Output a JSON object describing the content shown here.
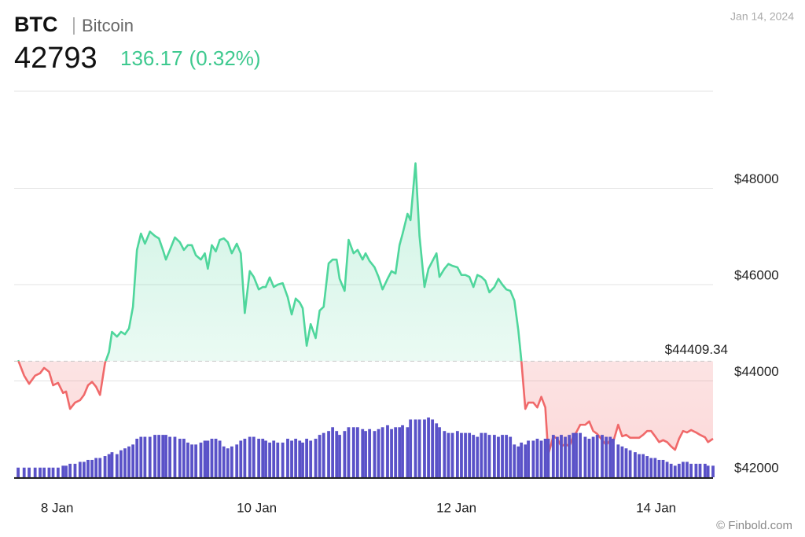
{
  "header": {
    "symbol": "BTC",
    "name": "Bitcoin",
    "price": 42793,
    "change": 136.17,
    "change_percent_label": "(0.32%)",
    "date": "Jan 14, 2024",
    "credit": "© Finbold.com"
  },
  "chart_data": {
    "type": "line",
    "x": [
      7.61,
      7.67,
      7.72,
      7.78,
      7.83,
      7.87,
      7.92,
      7.96,
      8.01,
      8.06,
      8.09,
      8.13,
      8.18,
      8.23,
      8.27,
      8.31,
      8.35,
      8.39,
      8.43,
      8.48,
      8.52,
      8.55,
      8.6,
      8.64,
      8.68,
      8.72,
      8.76,
      8.8,
      8.84,
      8.88,
      8.93,
      8.98,
      9.02,
      9.06,
      9.09,
      9.13,
      9.18,
      9.23,
      9.27,
      9.31,
      9.35,
      9.39,
      9.44,
      9.48,
      9.51,
      9.55,
      9.59,
      9.63,
      9.67,
      9.71,
      9.75,
      9.8,
      9.84,
      9.88,
      9.93,
      9.97,
      10.02,
      10.06,
      10.09,
      10.13,
      10.17,
      10.21,
      10.26,
      10.31,
      10.35,
      10.39,
      10.43,
      10.46,
      10.5,
      10.54,
      10.59,
      10.63,
      10.67,
      10.72,
      10.76,
      10.8,
      10.83,
      10.88,
      10.92,
      10.97,
      11.01,
      11.06,
      11.09,
      11.13,
      11.18,
      11.22,
      11.26,
      11.31,
      11.35,
      11.39,
      11.43,
      11.46,
      11.51,
      11.54,
      11.59,
      11.63,
      11.68,
      11.72,
      11.76,
      11.8,
      11.83,
      11.88,
      11.92,
      11.96,
      12.01,
      12.05,
      12.09,
      12.13,
      12.17,
      12.21,
      12.25,
      12.29,
      12.33,
      12.38,
      12.42,
      12.46,
      12.5,
      12.54,
      12.58,
      12.62,
      12.65,
      12.69,
      12.72,
      12.77,
      12.81,
      12.85,
      12.89,
      12.92,
      12.97,
      13.01,
      13.05,
      13.09,
      13.13,
      13.17,
      13.2,
      13.24,
      13.29,
      13.33,
      13.37,
      13.41,
      13.46,
      13.5,
      13.54,
      13.57,
      13.62,
      13.66,
      13.7,
      13.74,
      13.79,
      13.83,
      13.87,
      13.91,
      13.95,
      13.99,
      14.03,
      14.07,
      14.11,
      14.15,
      14.19,
      14.23,
      14.27,
      14.31,
      14.35,
      14.4,
      14.44,
      14.49,
      14.52,
      14.57
    ],
    "series": [
      {
        "name": "Price",
        "up_color": "#4fd69c",
        "down_color": "#f0696a",
        "values": [
          44430,
          44110,
          43940,
          44110,
          44160,
          44270,
          44190,
          43910,
          43960,
          43750,
          43780,
          43420,
          43550,
          43600,
          43710,
          43910,
          43980,
          43880,
          43710,
          44370,
          44600,
          45020,
          44920,
          45020,
          44970,
          45090,
          45540,
          46720,
          47060,
          46850,
          47100,
          47010,
          46960,
          46720,
          46520,
          46720,
          46980,
          46880,
          46720,
          46820,
          46820,
          46610,
          46520,
          46650,
          46330,
          46820,
          46690,
          46930,
          46960,
          46880,
          46650,
          46850,
          46650,
          45410,
          46280,
          46160,
          45900,
          45950,
          45950,
          46150,
          45950,
          46000,
          46030,
          45740,
          45380,
          45710,
          45630,
          45510,
          44730,
          45180,
          44890,
          45460,
          45540,
          46440,
          46520,
          46520,
          46120,
          45870,
          46930,
          46650,
          46720,
          46520,
          46650,
          46490,
          46360,
          46160,
          45900,
          46120,
          46280,
          46230,
          46820,
          47050,
          47470,
          47340,
          48520,
          47010,
          45950,
          46330,
          46490,
          46650,
          46160,
          46330,
          46430,
          46390,
          46360,
          46200,
          46200,
          46160,
          45950,
          46200,
          46160,
          46080,
          45840,
          45950,
          46120,
          46000,
          45900,
          45870,
          45670,
          45050,
          44430,
          43420,
          43550,
          43550,
          43450,
          43670,
          43450,
          42470,
          42850,
          42800,
          42640,
          42690,
          42640,
          42850,
          42930,
          43090,
          43090,
          43160,
          42960,
          42900,
          42770,
          42670,
          42770,
          42730,
          43090,
          42850,
          42880,
          42820,
          42820,
          42820,
          42880,
          42960,
          42960,
          42850,
          42730,
          42770,
          42730,
          42640,
          42570,
          42800,
          42960,
          42930,
          42980,
          42930,
          42880,
          42830,
          42730,
          42800
        ]
      },
      {
        "name": "Volume",
        "color": "#5a52c8",
        "axis": "y2",
        "values": [
          2.5,
          2.5,
          2.5,
          2.5,
          2.5,
          2.5,
          2.5,
          2.5,
          2.5,
          3,
          3,
          3.5,
          3.5,
          4,
          4,
          4.5,
          4.5,
          5,
          5,
          5.5,
          6,
          6.5,
          6,
          7,
          7.5,
          8,
          8.5,
          10,
          10.5,
          10.5,
          10.5,
          11,
          11,
          11,
          11,
          10.5,
          10.5,
          10,
          10,
          9,
          8.5,
          8.5,
          9,
          9.5,
          9.5,
          10,
          10,
          9.5,
          8,
          7.5,
          8,
          8.5,
          9.5,
          10,
          10.5,
          10.5,
          10,
          10,
          9.5,
          9,
          9.5,
          9,
          9,
          10,
          9.5,
          10,
          9.5,
          9,
          10,
          9.5,
          10,
          11,
          11.5,
          12,
          13,
          12,
          11,
          12,
          13,
          13,
          13,
          12.5,
          12,
          12.5,
          12,
          12.5,
          13,
          13.5,
          12.5,
          13,
          13,
          13.5,
          13,
          15,
          15,
          15,
          15,
          15.5,
          15,
          14,
          13,
          12,
          11.5,
          11.5,
          12,
          11.5,
          11.5,
          11.5,
          11,
          10.5,
          11.5,
          11.5,
          11,
          11,
          10.5,
          11,
          11,
          10.5,
          8.5,
          8,
          9,
          8.5,
          9.5,
          9.5,
          10,
          9.5,
          10,
          10,
          11,
          10.5,
          11,
          10.5,
          11,
          11.5,
          11.5,
          11.5,
          10.5,
          10,
          10.5,
          11,
          11,
          10.5,
          10.5,
          10,
          8.5,
          8,
          7.5,
          7,
          6.5,
          6,
          6,
          5.5,
          5,
          5,
          4.5,
          4.5,
          4,
          3.5,
          3,
          3.5,
          4,
          4,
          3.5,
          3.5,
          3.5,
          3.5,
          3,
          3
        ]
      }
    ],
    "reference": {
      "value": 44409.34,
      "label": "$44409.34"
    },
    "xlim": [
      7.57,
      14.57
    ],
    "xticks": [
      {
        "value": 8,
        "label": "8 Jan"
      },
      {
        "value": 10,
        "label": "10 Jan"
      },
      {
        "value": 12,
        "label": "12 Jan"
      },
      {
        "value": 14,
        "label": "14 Jan"
      }
    ],
    "ylim": [
      42000,
      50000
    ],
    "yticks": [
      {
        "value": 42000,
        "label": "$42000"
      },
      {
        "value": 44000,
        "label": "$44000"
      },
      {
        "value": 46000,
        "label": "$46000"
      },
      {
        "value": 48000,
        "label": "$48000"
      }
    ],
    "y2lim": [
      0,
      100
    ],
    "grid": true
  }
}
